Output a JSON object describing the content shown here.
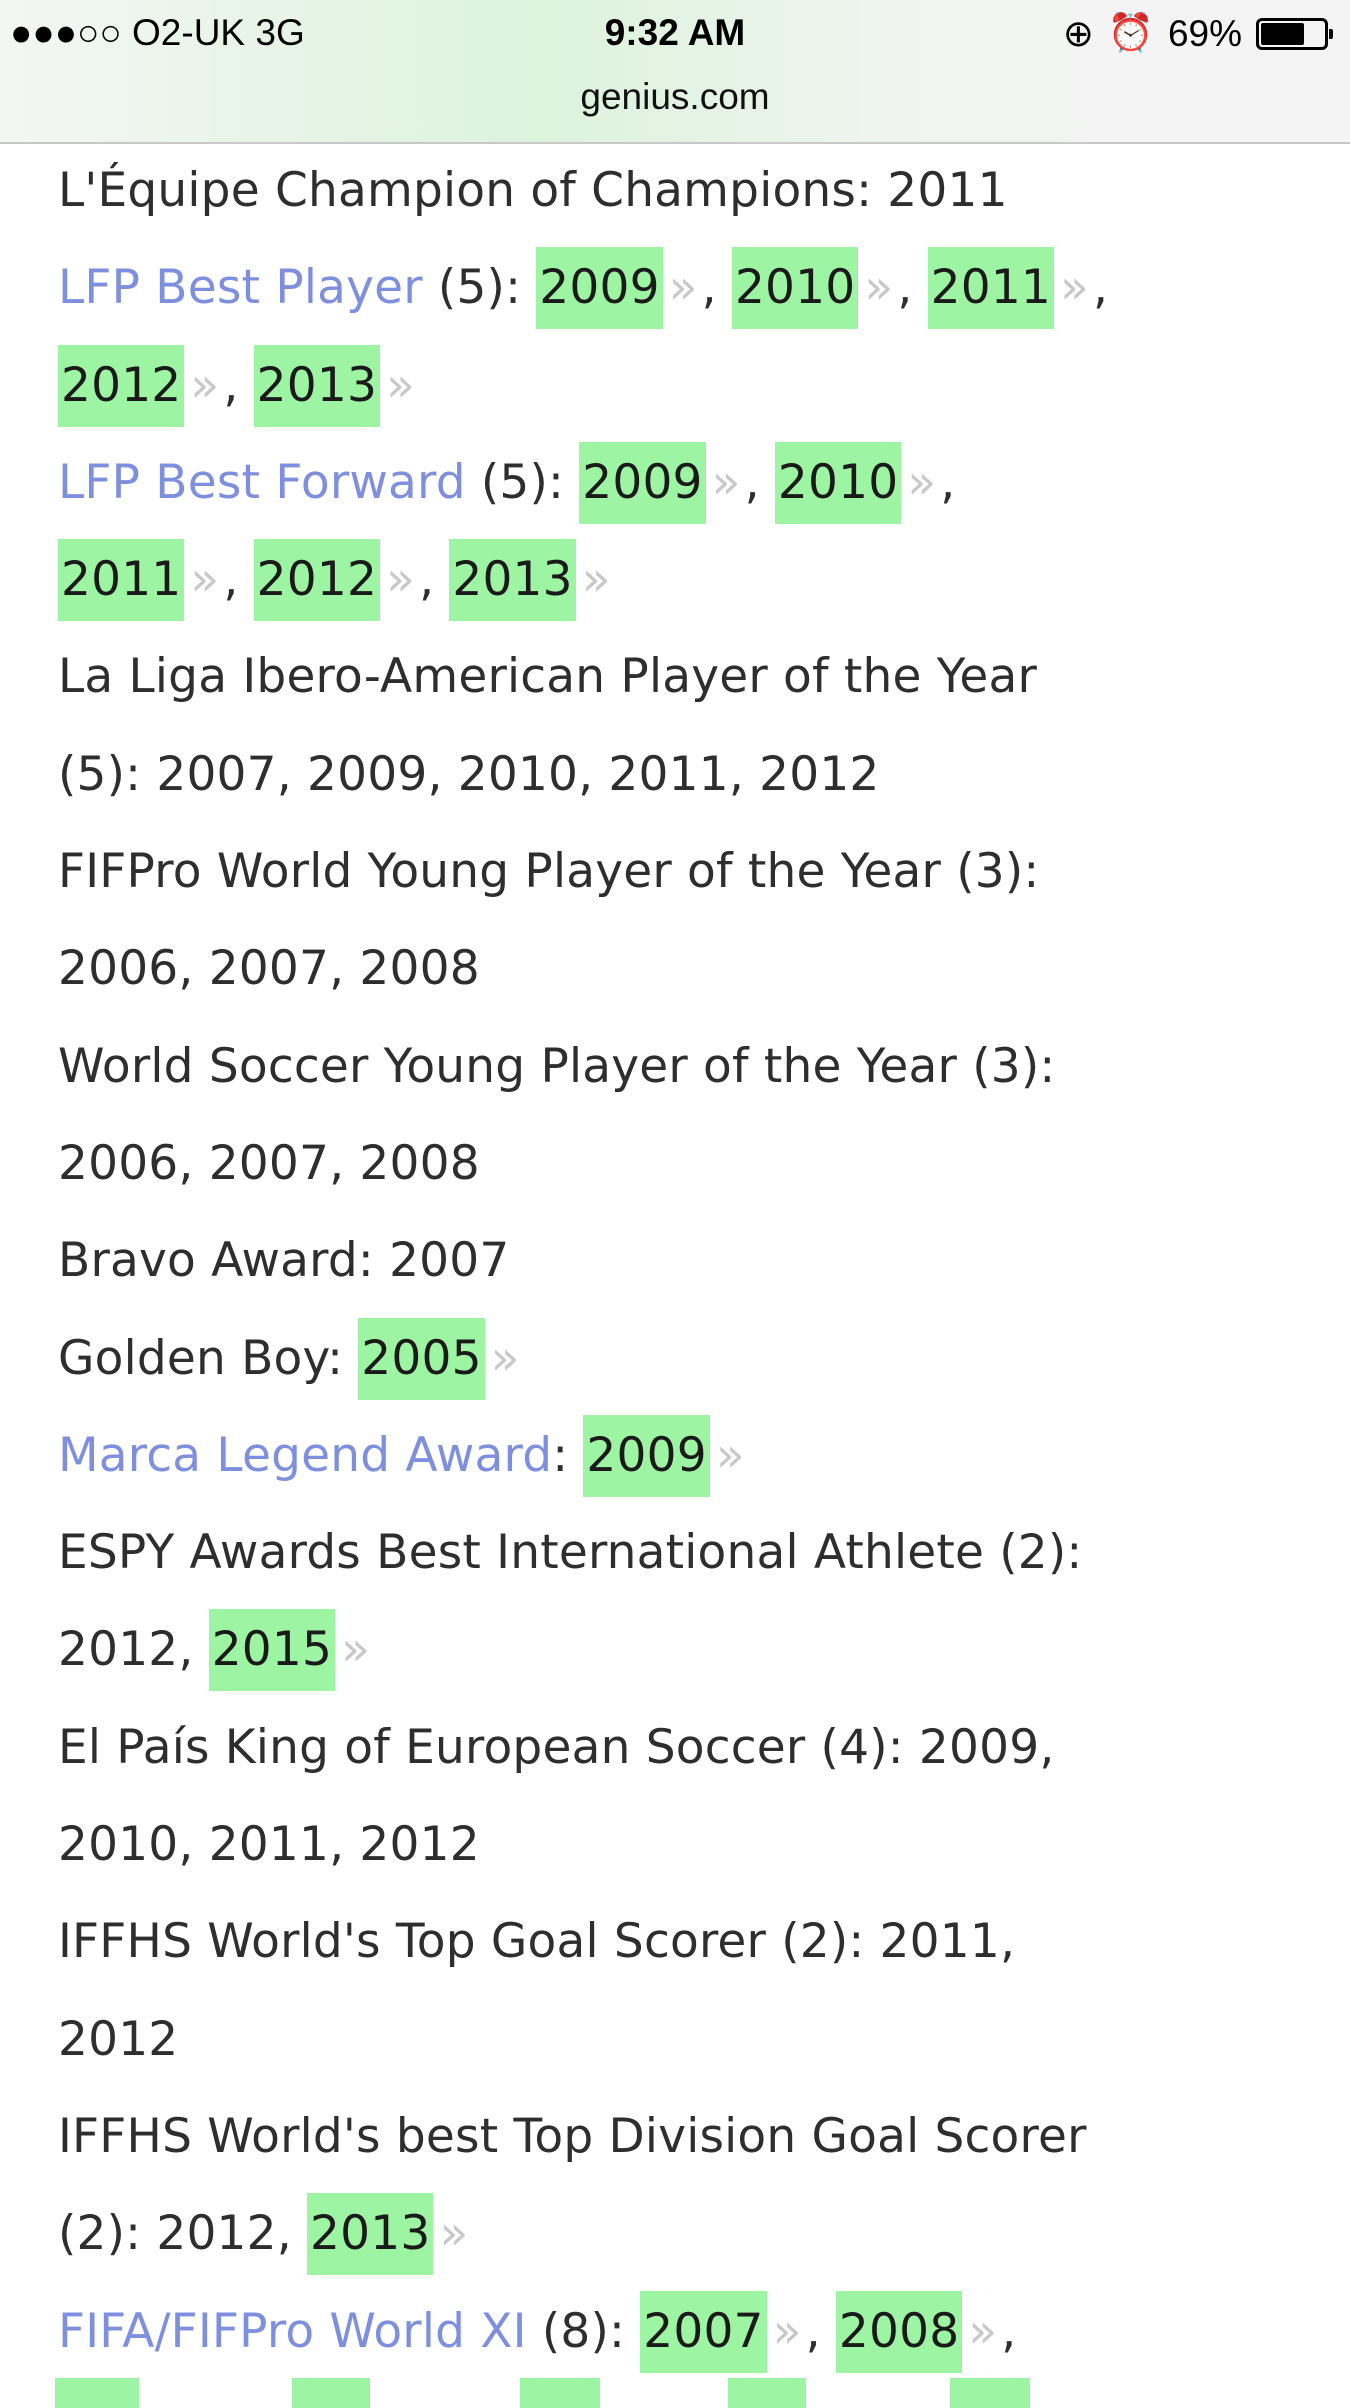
{
  "status_bar": {
    "carrier": "●●●○○ O2-UK   3G",
    "time": "9:32 AM",
    "battery_text": "69%",
    "battery_level": 0.69,
    "icons": [
      "rotation-lock-icon",
      "alarm-icon",
      "battery-icon"
    ]
  },
  "browser": {
    "url": "genius.com"
  },
  "colors": {
    "link": "#7f8fe0",
    "highlight": "#9df4a2",
    "chevron": "#c8c8c8",
    "text": "#2e2e2e"
  },
  "lines": [
    [
      {
        "k": "t",
        "v": "L'Équipe Champion of Champions: 2011"
      }
    ],
    [
      {
        "k": "a",
        "v": "LFP Best Player"
      },
      {
        "k": "t",
        "v": " (5): "
      },
      {
        "k": "h",
        "v": "2009"
      },
      {
        "k": "t",
        "v": ", "
      },
      {
        "k": "h",
        "v": "2010"
      },
      {
        "k": "t",
        "v": ", "
      },
      {
        "k": "h",
        "v": "2011"
      },
      {
        "k": "t",
        "v": ","
      }
    ],
    [
      {
        "k": "h",
        "v": "2012"
      },
      {
        "k": "t",
        "v": ", "
      },
      {
        "k": "h",
        "v": "2013"
      }
    ],
    [
      {
        "k": "a",
        "v": "LFP Best Forward"
      },
      {
        "k": "t",
        "v": " (5): "
      },
      {
        "k": "h",
        "v": "2009"
      },
      {
        "k": "t",
        "v": ", "
      },
      {
        "k": "h",
        "v": "2010"
      },
      {
        "k": "t",
        "v": ","
      }
    ],
    [
      {
        "k": "h",
        "v": "2011"
      },
      {
        "k": "t",
        "v": ", "
      },
      {
        "k": "h",
        "v": "2012"
      },
      {
        "k": "t",
        "v": ", "
      },
      {
        "k": "h",
        "v": "2013"
      }
    ],
    [
      {
        "k": "t",
        "v": "La Liga Ibero-American Player of the Year"
      }
    ],
    [
      {
        "k": "t",
        "v": "(5): 2007, 2009, 2010, 2011, 2012"
      }
    ],
    [
      {
        "k": "t",
        "v": "FIFPro World Young Player of the Year (3):"
      }
    ],
    [
      {
        "k": "t",
        "v": "2006, 2007, 2008"
      }
    ],
    [
      {
        "k": "t",
        "v": "World Soccer Young Player of the Year (3):"
      }
    ],
    [
      {
        "k": "t",
        "v": "2006, 2007, 2008"
      }
    ],
    [
      {
        "k": "t",
        "v": "Bravo Award: 2007"
      }
    ],
    [
      {
        "k": "t",
        "v": "Golden Boy: "
      },
      {
        "k": "h",
        "v": "2005"
      }
    ],
    [
      {
        "k": "a",
        "v": "Marca Legend Award"
      },
      {
        "k": "t",
        "v": ": "
      },
      {
        "k": "h",
        "v": "2009"
      }
    ],
    [
      {
        "k": "t",
        "v": "ESPY Awards Best International Athlete (2):"
      }
    ],
    [
      {
        "k": "t",
        "v": "2012, "
      },
      {
        "k": "h",
        "v": "2015"
      }
    ],
    [
      {
        "k": "t",
        "v": "El País King of European Soccer (4): 2009,"
      }
    ],
    [
      {
        "k": "t",
        "v": "2010, 2011, 2012"
      }
    ],
    [
      {
        "k": "t",
        "v": "IFFHS World's Top Goal Scorer (2): 2011,"
      }
    ],
    [
      {
        "k": "t",
        "v": "2012"
      }
    ],
    [
      {
        "k": "t",
        "v": "IFFHS World's best Top Division Goal Scorer"
      }
    ],
    [
      {
        "k": "t",
        "v": "(2): 2012, "
      },
      {
        "k": "h",
        "v": "2013"
      }
    ],
    [
      {
        "k": "a",
        "v": "FIFA/FIFPro World XI"
      },
      {
        "k": "t",
        "v": " (8): "
      },
      {
        "k": "h",
        "v": "2007"
      },
      {
        "k": "t",
        "v": ", "
      },
      {
        "k": "h",
        "v": "2008"
      },
      {
        "k": "t",
        "v": ","
      }
    ]
  ]
}
